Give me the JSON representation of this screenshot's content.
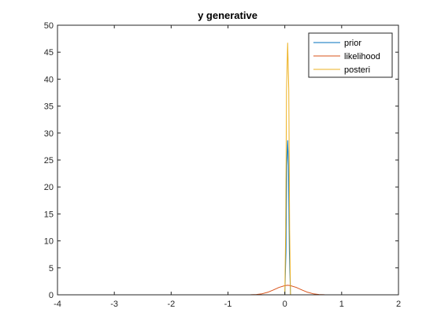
{
  "chart_data": {
    "type": "line",
    "title": "y generative",
    "xlabel": "",
    "ylabel": "",
    "xlim": [
      -4,
      2
    ],
    "ylim": [
      0,
      50
    ],
    "xticks": [
      -4,
      -3,
      -2,
      -1,
      0,
      1,
      2
    ],
    "yticks": [
      0,
      5,
      10,
      15,
      20,
      25,
      30,
      35,
      40,
      45,
      50
    ],
    "grid": false,
    "legend_position": "top-right",
    "series": [
      {
        "name": "prior",
        "color": "#0072bd",
        "x": [
          -4,
          -0.5,
          0.0,
          0.02,
          0.035,
          0.05,
          0.065,
          0.08,
          0.1,
          0.5,
          2
        ],
        "y": [
          0,
          0,
          0,
          8,
          24,
          28.6,
          24,
          8,
          0,
          0,
          0
        ]
      },
      {
        "name": "likelihood",
        "color": "#d95319",
        "x": [
          -4,
          -1,
          -0.6,
          -0.5,
          -0.4,
          -0.3,
          -0.2,
          -0.1,
          0.0,
          0.05,
          0.1,
          0.2,
          0.3,
          0.4,
          0.5,
          0.6,
          0.7,
          1,
          2
        ],
        "y": [
          0,
          0,
          0.01,
          0.06,
          0.19,
          0.47,
          0.9,
          1.38,
          1.7,
          1.78,
          1.7,
          1.38,
          0.9,
          0.47,
          0.19,
          0.06,
          0.01,
          0,
          0
        ]
      },
      {
        "name": "posteri",
        "color": "#edb120",
        "x": [
          -4,
          -0.5,
          0.0,
          0.015,
          0.03,
          0.05,
          0.07,
          0.085,
          0.1,
          0.5,
          2
        ],
        "y": [
          0,
          0,
          0,
          12,
          38,
          46.7,
          38,
          12,
          0,
          0,
          0
        ]
      }
    ]
  }
}
